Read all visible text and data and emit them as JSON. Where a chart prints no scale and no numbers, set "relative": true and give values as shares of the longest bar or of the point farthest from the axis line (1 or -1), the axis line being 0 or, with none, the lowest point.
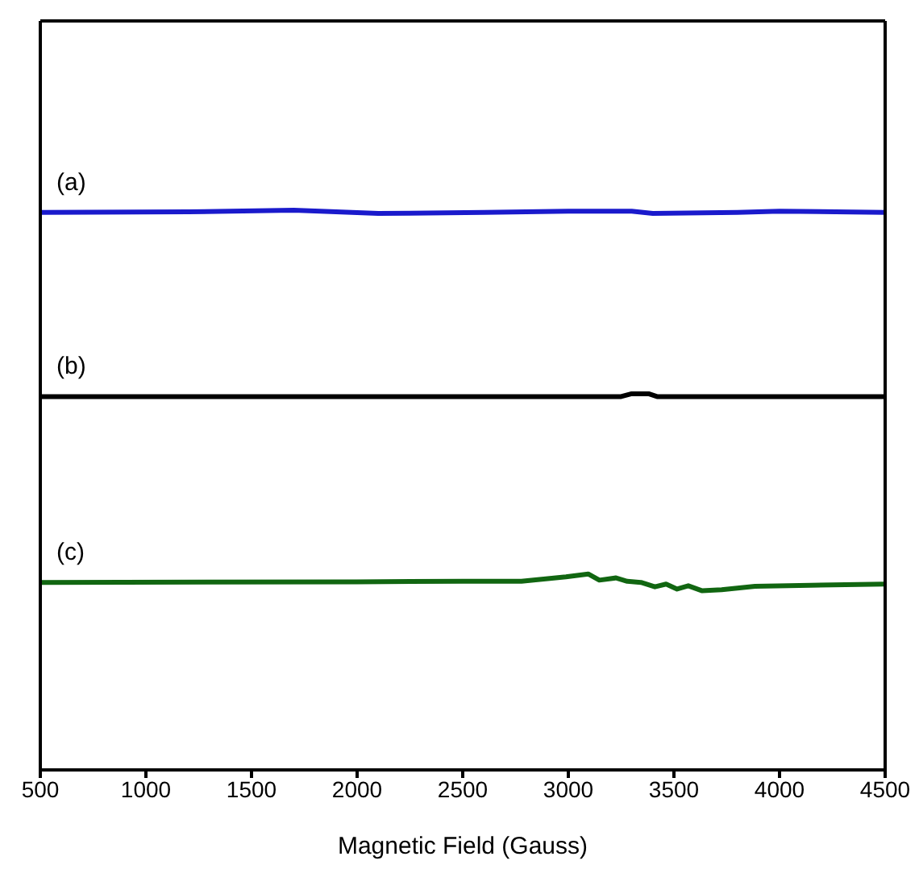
{
  "chart_data": {
    "type": "line",
    "relative": true,
    "xlabel": "Magnetic Field (Gauss)",
    "xlim": [
      500,
      4500
    ],
    "xticks": [
      500,
      1000,
      1500,
      2000,
      2500,
      3000,
      3500,
      4000,
      4500
    ],
    "grid": false,
    "legend": false,
    "marker": "none",
    "series": [
      {
        "name": "(a)",
        "color": "#1a1acc",
        "x": [
          500,
          1200,
          1700,
          2100,
          2600,
          3000,
          3300,
          3400,
          3800,
          4000,
          4500
        ],
        "values": [
          0.996,
          0.997,
          1.0,
          0.994,
          0.996,
          0.998,
          0.998,
          0.994,
          0.996,
          0.998,
          0.996
        ]
      },
      {
        "name": "(b)",
        "color": "#000000",
        "x": [
          500,
          1500,
          2500,
          3250,
          3300,
          3380,
          3420,
          4500
        ],
        "values": [
          0.667,
          0.667,
          0.667,
          0.667,
          0.672,
          0.672,
          0.667,
          0.667
        ]
      },
      {
        "name": "(c)",
        "color": "#116611",
        "x": [
          500,
          2000,
          2500,
          2778,
          2989,
          3094,
          3147,
          3226,
          3279,
          3344,
          3410,
          3463,
          3515,
          3568,
          3634,
          3726,
          3884,
          4147,
          4500
        ],
        "values": [
          0.335,
          0.336,
          0.337,
          0.337,
          0.345,
          0.35,
          0.339,
          0.343,
          0.337,
          0.335,
          0.327,
          0.332,
          0.323,
          0.329,
          0.32,
          0.322,
          0.328,
          0.33,
          0.332
        ]
      }
    ]
  }
}
